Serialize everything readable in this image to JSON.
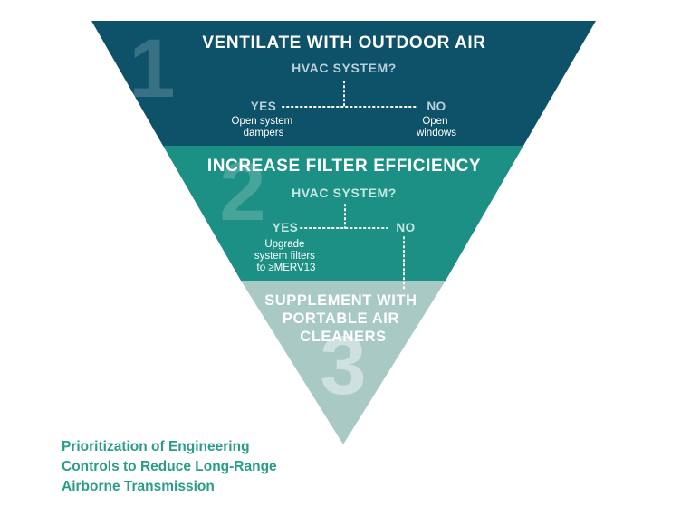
{
  "colors": {
    "tier1": "#0d5269",
    "tier2": "#1d9085",
    "tier3": "#a9c9c4",
    "tier1_text_muted": "#b9d0d8",
    "tier2_text_muted": "#c8e6e1",
    "caption": "#2a9d8a"
  },
  "tier1": {
    "number": "1",
    "heading": "VENTILATE WITH OUTDOOR AIR",
    "question": "HVAC SYSTEM?",
    "yes_label": "YES",
    "yes_detail": [
      "Open system",
      "dampers"
    ],
    "no_label": "NO",
    "no_detail": [
      "Open",
      "windows"
    ]
  },
  "tier2": {
    "number": "2",
    "heading": "INCREASE FILTER EFFICIENCY",
    "question": "HVAC SYSTEM?",
    "yes_label": "YES",
    "yes_detail": [
      "Upgrade",
      "system filters",
      "to ≥MERV13"
    ],
    "no_label": "NO"
  },
  "tier3": {
    "number": "3",
    "heading": [
      "SUPPLEMENT WITH",
      "PORTABLE AIR",
      "CLEANERS"
    ]
  },
  "caption": [
    "Prioritization of Engineering",
    "Controls to Reduce Long-Range",
    "Airborne Transmission"
  ]
}
